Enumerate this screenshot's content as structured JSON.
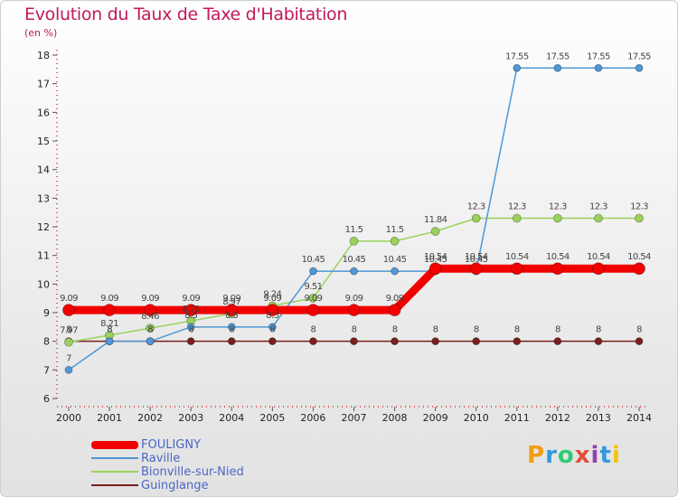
{
  "title": "Evolution du Taux de Taxe d'Habitation",
  "unit": "(en %)",
  "logo": {
    "text": "Proxiti",
    "colors": [
      "#f39c12",
      "#3498db",
      "#2ecc71",
      "#e74c3c",
      "#8e44ad",
      "#3498db",
      "#f1c40f"
    ]
  },
  "chart_data": {
    "type": "line",
    "x": [
      2000,
      2001,
      2002,
      2003,
      2004,
      2005,
      2006,
      2007,
      2008,
      2009,
      2010,
      2011,
      2012,
      2013,
      2014
    ],
    "ylim": [
      6,
      18
    ],
    "yticks": [
      6,
      7,
      8,
      9,
      10,
      11,
      12,
      13,
      14,
      15,
      16,
      17,
      18
    ],
    "grid": false,
    "legend": "bottom-left",
    "series": [
      {
        "name": "Guinglange",
        "color": "#7a1e1e",
        "width": 1.5,
        "marker": 4,
        "values": [
          8,
          8,
          8,
          8,
          8,
          8,
          8,
          8,
          8,
          8,
          8,
          8,
          8,
          8,
          8
        ],
        "labels": [
          "8",
          "8",
          "8",
          "8",
          "8",
          "8",
          "8",
          "8",
          "8",
          "8",
          "8",
          "8",
          "8",
          "8",
          "8"
        ]
      },
      {
        "name": "Bionville-sur-Nied",
        "color": "#99d25a",
        "width": 1.5,
        "marker": 4.5,
        "values": [
          7.97,
          8.21,
          8.46,
          8.71,
          8.97,
          9.24,
          9.51,
          11.5,
          11.5,
          11.84,
          12.3,
          12.3,
          12.3,
          12.3,
          12.3
        ],
        "labels": [
          "7.97",
          "8.21",
          "8.46",
          "8.71",
          "8.97",
          "9.24",
          "9.51",
          "11.5",
          "11.5",
          "11.84",
          "12.3",
          "12.3",
          "12.3",
          "12.3",
          "12.3"
        ]
      },
      {
        "name": "Raville",
        "color": "#4f97d6",
        "width": 1.5,
        "marker": 4,
        "values": [
          7,
          8,
          8,
          8.5,
          8.5,
          8.5,
          10.45,
          10.45,
          10.45,
          10.45,
          10.45,
          17.55,
          17.55,
          17.55,
          17.55
        ],
        "labels": [
          "7",
          "8",
          "8",
          "8.5",
          "8.5",
          "8.5",
          "10.45",
          "10.45",
          "10.45",
          "10.45",
          "10.45",
          "17.55",
          "17.55",
          "17.55",
          "17.55"
        ]
      },
      {
        "name": "FOULIGNY",
        "color": "#f20000",
        "width": 9,
        "marker": 6.5,
        "values": [
          9.09,
          9.09,
          9.09,
          9.09,
          9.09,
          9.09,
          9.09,
          9.09,
          9.09,
          10.54,
          10.54,
          10.54,
          10.54,
          10.54,
          10.54
        ],
        "labels": [
          "9.09",
          "9.09",
          "9.09",
          "9.09",
          "9.09",
          "9.09",
          "9.09",
          "9.09",
          "9.09",
          "10.54",
          "10.54",
          "10.54",
          "10.54",
          "10.54",
          "10.54"
        ]
      }
    ]
  },
  "legend_items": [
    {
      "name": "FOULIGNY",
      "color": "#f20000",
      "thickness": 9
    },
    {
      "name": "Raville",
      "color": "#4f97d6",
      "thickness": 2
    },
    {
      "name": "Bionville-sur-Nied",
      "color": "#99d25a",
      "thickness": 2
    },
    {
      "name": "Guinglange",
      "color": "#7a1e1e",
      "thickness": 2
    }
  ]
}
